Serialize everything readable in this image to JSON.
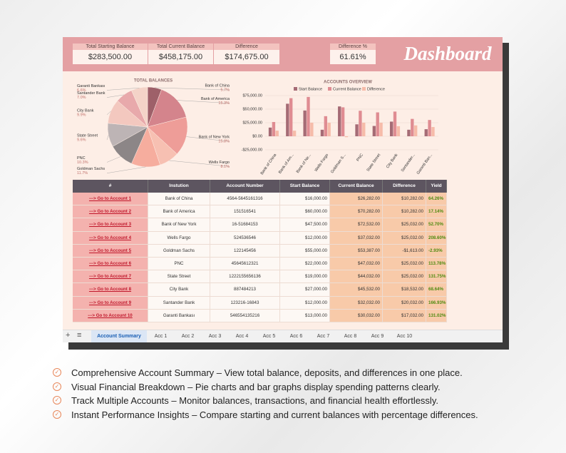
{
  "header": {
    "title": "Dashboard",
    "summary": [
      {
        "label": "Total Starting Balance",
        "value": "$283,500.00"
      },
      {
        "label": "Total Current Balance",
        "value": "$458,175.00"
      },
      {
        "label": "Difference",
        "value": "$174,675.00"
      }
    ],
    "pct": {
      "label": "Difference %",
      "value": "61.61%"
    }
  },
  "chart_data": [
    {
      "type": "pie",
      "title": "TOTAL BALANCES",
      "categories": [
        "Bank of China",
        "Bank of America",
        "Bank of New York",
        "Wells Fargo",
        "Goldman Sachs",
        "PNC",
        "State Street",
        "City Bank",
        "Santander Bank",
        "Garanti Bankası"
      ],
      "values": [
        5.7,
        15.3,
        15.8,
        8.1,
        11.7,
        10.3,
        9.6,
        9.9,
        7.0,
        6.6
      ],
      "value_labels": [
        "5.7%",
        "15.3%",
        "15.8%",
        "8.1%",
        "11.7%",
        "10.3%",
        "9.6%",
        "9.9%",
        "7.0%",
        "6.6%"
      ],
      "colors": [
        "#9e6069",
        "#d4848c",
        "#ee9d98",
        "#f7c0b2",
        "#f6ad9e",
        "#8c8687",
        "#bdb4b5",
        "#f3c8bf",
        "#e8a9ab",
        "#f4d3c8"
      ]
    },
    {
      "type": "bar",
      "title": "ACCOUNTS OVERVIEW",
      "categories": [
        "Bank of China",
        "Bank of Am...",
        "Bank of Ne...",
        "Wells Fargo",
        "Goldman S...",
        "PNC",
        "State Street",
        "City Bank",
        "Santander...",
        "Garanti Ban..."
      ],
      "series": [
        {
          "name": "Start Balance",
          "color": "#a56b75",
          "values": [
            16000,
            60000,
            47500,
            12000,
            55000,
            22000,
            19000,
            27000,
            12000,
            13000
          ]
        },
        {
          "name": "Current Balance",
          "color": "#df8c92",
          "values": [
            26282,
            70282,
            72532,
            37032,
            53387,
            47032,
            44032,
            45532,
            32032,
            30032
          ]
        },
        {
          "name": "Difference",
          "color": "#f6bba9",
          "values": [
            10282,
            10282,
            25032,
            25032,
            -1613,
            25032,
            25032,
            18532,
            20032,
            17032
          ]
        }
      ],
      "ylim": [
        -25000,
        75000
      ],
      "yticks": [
        {
          "value": 75000,
          "label": "$75,000.00"
        },
        {
          "value": 50000,
          "label": "$50,000.00"
        },
        {
          "value": 25000,
          "label": "$25,000.00"
        },
        {
          "value": 0,
          "label": "$0.00"
        },
        {
          "value": -25000,
          "label": "-$25,000.00"
        }
      ],
      "legend": "top"
    }
  ],
  "table": {
    "columns": [
      "#",
      "Instution",
      "Account Number",
      "Start Balance",
      "Current Balance",
      "Difference",
      "Yield"
    ],
    "rows": [
      [
        "---> Go to Account 1",
        "Bank of China",
        "4564-5645161316",
        "$16,000.00",
        "$26,282.00",
        "$10,282.00",
        "64.26%"
      ],
      [
        "---> Go to Account 2",
        "Bank of America",
        "151516541",
        "$60,000.00",
        "$70,282.00",
        "$10,282.00",
        "17.14%"
      ],
      [
        "---> Go to Account 3",
        "Bank of New York",
        "16-51684153",
        "$47,500.00",
        "$72,532.00",
        "$25,032.00",
        "52.70%"
      ],
      [
        "---> Go to Account 4",
        "Wells Fargo",
        "524536546",
        "$12,000.00",
        "$37,032.00",
        "$25,032.00",
        "208.60%"
      ],
      [
        "---> Go to Account 5",
        "Goldman Sachs",
        "122145456",
        "$55,000.00",
        "$53,387.00",
        "-$1,613.00",
        "-2.93%"
      ],
      [
        "---> Go to Account 6",
        "PNC",
        "45645612321",
        "$22,000.00",
        "$47,032.00",
        "$25,032.00",
        "113.78%"
      ],
      [
        "---> Go to Account 7",
        "State Street",
        "1222155656136",
        "$19,000.00",
        "$44,032.00",
        "$25,032.00",
        "131.75%"
      ],
      [
        "---> Go to Account 8",
        "City Bank",
        "887484213",
        "$27,000.00",
        "$45,532.00",
        "$18,532.00",
        "68.64%"
      ],
      [
        "---> Go to Account 9",
        "Santander Bank",
        "123216-16843",
        "$12,000.00",
        "$32,032.00",
        "$20,032.00",
        "166.93%"
      ],
      [
        "---> Go to Account 10",
        "Garanti Bankası",
        "546554135216",
        "$13,000.00",
        "$30,032.00",
        "$17,032.00",
        "131.02%"
      ]
    ]
  },
  "tabs": [
    "Account Summary",
    "Acc 1",
    "Acc 2",
    "Acc 3",
    "Acc 4",
    "Acc 5",
    "Acc 6",
    "Acc 7",
    "Acc 8",
    "Acc 9",
    "Acc 10"
  ],
  "features": [
    "Comprehensive Account Summary – View total balance, deposits, and differences in one place.",
    "Visual Financial Breakdown – Pie charts and bar graphs display spending patterns clearly.",
    "Track Multiple Accounts – Monitor balances, transactions, and financial health effortlessly.",
    "Instant Performance Insights – Compare starting and current balances with percentage differences."
  ]
}
